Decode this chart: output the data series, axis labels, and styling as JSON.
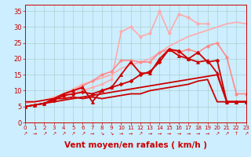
{
  "background_color": "#cceeff",
  "grid_color": "#aacccc",
  "xlabel": "Vent moyen/en rafales ( km/h )",
  "xlim": [
    0,
    23
  ],
  "ylim": [
    0,
    37
  ],
  "yticks": [
    0,
    5,
    10,
    15,
    20,
    25,
    30,
    35
  ],
  "xticks": [
    0,
    1,
    2,
    3,
    4,
    5,
    6,
    7,
    8,
    9,
    10,
    11,
    12,
    13,
    14,
    15,
    16,
    17,
    18,
    19,
    20,
    21,
    22,
    23
  ],
  "lines": [
    {
      "comment": "straight diagonal light pink line (top) - nearly linear rising",
      "x": [
        0,
        1,
        2,
        3,
        4,
        5,
        6,
        7,
        8,
        9,
        10,
        11,
        12,
        13,
        14,
        15,
        16,
        17,
        18,
        19,
        20,
        21,
        22,
        23
      ],
      "y": [
        6,
        6.5,
        7,
        8,
        9,
        10.5,
        12,
        13,
        14,
        15,
        17,
        18,
        19,
        20,
        22,
        24,
        25.5,
        27,
        28,
        29,
        30,
        31,
        31.5,
        31
      ],
      "color": "#ffaaaa",
      "lw": 1.2,
      "marker": null,
      "ms": 0
    },
    {
      "comment": "light pink with circle markers - peaks around 14-15 at ~35",
      "x": [
        0,
        1,
        2,
        3,
        4,
        5,
        6,
        7,
        8,
        9,
        10,
        11,
        12,
        13,
        14,
        15,
        16,
        17,
        18,
        19,
        20,
        21,
        22,
        23
      ],
      "y": [
        5,
        5.5,
        6,
        7,
        8,
        9,
        10,
        11,
        12,
        13.5,
        28.5,
        30,
        27,
        28,
        35,
        28,
        34,
        33,
        31,
        31,
        null,
        null,
        null,
        null
      ],
      "color": "#ffaaaa",
      "lw": 1.2,
      "marker": "o",
      "ms": 2.5
    },
    {
      "comment": "medium pink with circle markers - peaks around 14-15",
      "x": [
        0,
        1,
        2,
        3,
        4,
        5,
        6,
        7,
        8,
        9,
        10,
        11,
        12,
        13,
        14,
        15,
        16,
        17,
        18,
        19,
        20,
        21,
        22,
        23
      ],
      "y": [
        5,
        5.5,
        6,
        7,
        8.5,
        10,
        11.5,
        13,
        15,
        16,
        19.5,
        19.5,
        19,
        19,
        22,
        23,
        22,
        23,
        22,
        24,
        25,
        20.5,
        9,
        9
      ],
      "color": "#ff8888",
      "lw": 1.2,
      "marker": "o",
      "ms": 2.5
    },
    {
      "comment": "dark red straight line rising then flat",
      "x": [
        0,
        1,
        2,
        3,
        4,
        5,
        6,
        7,
        8,
        9,
        10,
        11,
        12,
        13,
        14,
        15,
        16,
        17,
        18,
        19,
        20,
        21,
        22,
        23
      ],
      "y": [
        5,
        5.5,
        6,
        6.5,
        7,
        7.5,
        8,
        8.5,
        9,
        9.5,
        10,
        10.5,
        11,
        11.5,
        12,
        12.5,
        13,
        13.5,
        14,
        14.5,
        15,
        6.5,
        6.5,
        6.5
      ],
      "color": "#cc0000",
      "lw": 1.3,
      "marker": null,
      "ms": 0
    },
    {
      "comment": "dark red flat-ish line",
      "x": [
        0,
        1,
        2,
        3,
        4,
        5,
        6,
        7,
        8,
        9,
        10,
        11,
        12,
        13,
        14,
        15,
        16,
        17,
        18,
        19,
        20,
        21,
        22,
        23
      ],
      "y": [
        6.5,
        6.5,
        7,
        7.5,
        7.5,
        8,
        7.5,
        8,
        7.5,
        8,
        8.5,
        9,
        9,
        10,
        10.5,
        11,
        11.5,
        12,
        13,
        13.5,
        6.5,
        6.5,
        6.5,
        6.5
      ],
      "color": "#cc0000",
      "lw": 1.3,
      "marker": null,
      "ms": 0
    },
    {
      "comment": "dark red with triangle markers - wiggly",
      "x": [
        0,
        1,
        2,
        3,
        4,
        5,
        6,
        7,
        8,
        9,
        10,
        11,
        12,
        13,
        14,
        15,
        16,
        17,
        18,
        19,
        20,
        21,
        22,
        23
      ],
      "y": [
        5,
        5.5,
        6,
        7.5,
        9,
        10,
        11,
        6.5,
        10,
        11,
        15,
        19,
        15.5,
        15.5,
        20,
        23,
        21,
        20,
        19,
        19.5,
        15.5,
        6.5,
        6.5,
        6.5
      ],
      "color": "#cc0000",
      "lw": 1.3,
      "marker": "^",
      "ms": 3
    },
    {
      "comment": "dark red with diamond markers - wiggly peaks ~23",
      "x": [
        0,
        1,
        2,
        3,
        4,
        5,
        6,
        7,
        8,
        9,
        10,
        11,
        12,
        13,
        14,
        15,
        16,
        17,
        18,
        19,
        20,
        21,
        22,
        23
      ],
      "y": [
        5,
        5.5,
        6,
        7,
        8.5,
        9,
        9.5,
        9,
        10,
        11,
        12,
        13,
        15,
        16,
        19,
        23,
        22.5,
        20,
        22,
        19,
        19.5,
        6.5,
        6.5,
        6.5
      ],
      "color": "#cc0000",
      "lw": 1.3,
      "marker": "D",
      "ms": 2.5
    }
  ],
  "arrows": [
    "↗",
    "→",
    "↗",
    "↗",
    "↗",
    "↗",
    "↗",
    "→",
    "↘",
    "↘",
    "→",
    "→",
    "↗",
    "→",
    "→",
    "→",
    "→",
    "→",
    "→",
    "→",
    "↗",
    "↗",
    "↑",
    "↗"
  ],
  "xlabel_color": "#cc0000",
  "tick_color": "#cc0000",
  "label_fontsize": 6,
  "xlabel_fontsize": 7.5
}
